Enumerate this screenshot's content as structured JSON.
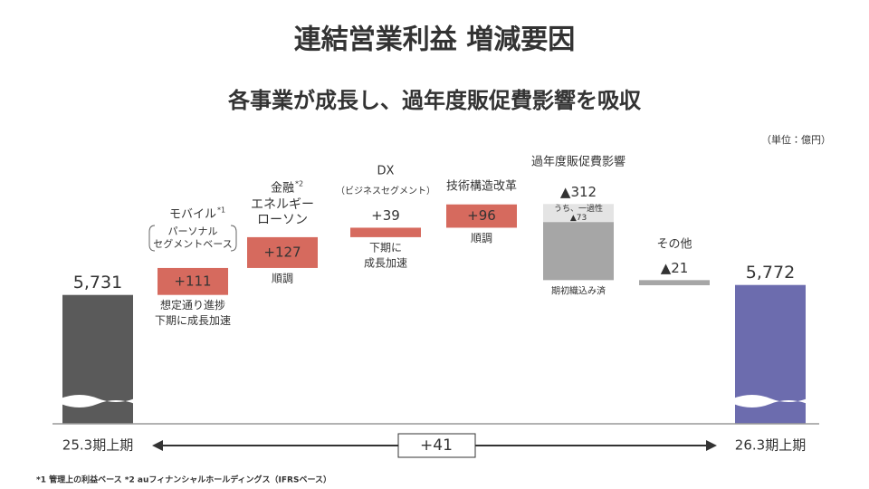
{
  "chart_data": {
    "type": "waterfall",
    "title": "連結営業利益 増減要因",
    "subtitle": "各事業が成長し、過年度販促費影響を吸収",
    "unit": "（単位：億円）",
    "categories": [
      "25.3期上期",
      "モバイル",
      "金融",
      "DX",
      "技術構造改革",
      "過年度販促費影響",
      "その他",
      "26.3期上期"
    ],
    "kinds": [
      "total",
      "step",
      "step",
      "step",
      "step",
      "step",
      "step",
      "total"
    ],
    "values": [
      5731,
      111,
      127,
      39,
      96,
      -312,
      -21,
      5772
    ],
    "value_labels": [
      "5,731",
      "+111",
      "+127",
      "+39",
      "+96",
      "▲312",
      "▲21",
      "5,772"
    ],
    "colors": [
      "#5a5a5a",
      "#d66a5e",
      "#d66a5e",
      "#d66a5e",
      "#d66a5e",
      "#a6a6a6",
      "#a6a6a6",
      "#6c6cae"
    ],
    "category_marks": [
      {
        "index": 1,
        "text": "*1"
      },
      {
        "index": 2,
        "text": "*2"
      }
    ],
    "category_sublabels": [
      {
        "index": 1,
        "lines": [
          "パーソナル",
          "セグメントベース"
        ]
      },
      {
        "index": 2,
        "lines": [
          "エネルギー",
          "ローソン"
        ]
      },
      {
        "index": 3,
        "lines": [
          "（ビジネスセグメント）"
        ]
      }
    ],
    "notes": [
      {
        "index": 1,
        "lines": [
          "想定通り進捗",
          "下期に成長加速"
        ],
        "color": "#c9574a"
      },
      {
        "index": 2,
        "lines": [
          "順調"
        ],
        "color": "#c9574a"
      },
      {
        "index": 3,
        "lines": [
          "下期に",
          "成長加速"
        ],
        "color": "#c9574a"
      },
      {
        "index": 4,
        "lines": [
          "順調"
        ],
        "color": "#c9574a"
      },
      {
        "index": 5,
        "lines": [
          "期初織込み済"
        ],
        "color": "#333333"
      }
    ],
    "breakdown": {
      "index": 5,
      "label": "うち、一過性",
      "value": -73,
      "value_label": "▲73",
      "color": "#e4e4e4"
    },
    "difference": {
      "value": 41,
      "label": "+41"
    },
    "ylim": [
      5200,
      6400
    ],
    "footnote": "*1 管理上の利益ベース  *2 auフィナンシャルホールディングス（IFRSベース）"
  }
}
